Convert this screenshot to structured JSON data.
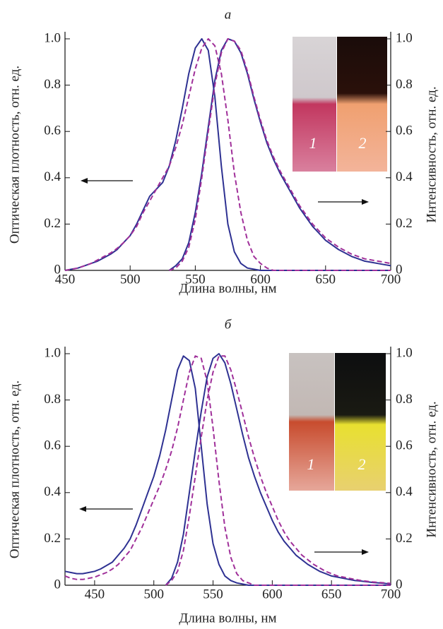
{
  "chart_data": [
    {
      "type": "line",
      "title": "а",
      "xlabel": "Длина волны, нм",
      "ylabel": "Оптическая плотность, отн. ед.",
      "y2label": "Интенсивность, отн. ед.",
      "inset_labels": [
        "1",
        "2"
      ],
      "xlim": [
        450,
        700
      ],
      "xticks": [
        450,
        500,
        550,
        600,
        650,
        700
      ],
      "ylim": [
        0,
        1
      ],
      "yticks": [
        0,
        0.2,
        0.4,
        0.6,
        0.8,
        {
          "value": 1,
          "label": "1.0"
        }
      ],
      "y2lim": [
        0,
        1
      ],
      "y2ticks": [
        0,
        0.2,
        0.4,
        0.6,
        0.8,
        {
          "value": 1,
          "label": "1.0"
        }
      ],
      "x": [
        450,
        455,
        460,
        465,
        470,
        475,
        480,
        485,
        490,
        495,
        500,
        505,
        510,
        515,
        520,
        525,
        530,
        535,
        540,
        545,
        550,
        555,
        560,
        565,
        570,
        575,
        580,
        585,
        590,
        595,
        600,
        605,
        610,
        615,
        620,
        625,
        630,
        635,
        640,
        645,
        650,
        655,
        660,
        665,
        670,
        675,
        680,
        685,
        690,
        695,
        700
      ],
      "series": [
        {
          "color": "#2e3192",
          "dash": "solid",
          "values": [
            0,
            0.005,
            0.01,
            0.02,
            0.03,
            0.04,
            0.055,
            0.07,
            0.09,
            0.12,
            0.15,
            0.2,
            0.26,
            0.32,
            0.35,
            0.38,
            0.45,
            0.56,
            0.7,
            0.85,
            0.96,
            1.0,
            0.95,
            0.75,
            0.45,
            0.2,
            0.08,
            0.03,
            0.01,
            0.005,
            0,
            0,
            0,
            0,
            0,
            0,
            0,
            0,
            0,
            0,
            0,
            0,
            0,
            0,
            0,
            0,
            0,
            0,
            0,
            0,
            0
          ]
        },
        {
          "color": "#a0309a",
          "dash": "dashed",
          "values": [
            0,
            0.005,
            0.01,
            0.02,
            0.03,
            0.045,
            0.06,
            0.075,
            0.095,
            0.12,
            0.15,
            0.19,
            0.25,
            0.3,
            0.35,
            0.4,
            0.45,
            0.53,
            0.63,
            0.75,
            0.87,
            0.96,
            1.0,
            0.97,
            0.85,
            0.65,
            0.42,
            0.25,
            0.13,
            0.06,
            0.03,
            0.01,
            0,
            0,
            0,
            0,
            0,
            0,
            0,
            0,
            0,
            0,
            0,
            0,
            0,
            0,
            0,
            0,
            0,
            0,
            0
          ]
        },
        {
          "color": "#2e3192",
          "dash": "solid",
          "axis": "y2",
          "values": [
            null,
            null,
            null,
            null,
            null,
            null,
            null,
            null,
            null,
            null,
            null,
            null,
            null,
            null,
            null,
            null,
            0,
            0.02,
            0.05,
            0.12,
            0.25,
            0.42,
            0.62,
            0.82,
            0.95,
            1.0,
            0.99,
            0.94,
            0.85,
            0.74,
            0.64,
            0.55,
            0.48,
            0.42,
            0.37,
            0.32,
            0.27,
            0.23,
            0.19,
            0.16,
            0.13,
            0.11,
            0.09,
            0.075,
            0.06,
            0.05,
            0.04,
            0.035,
            0.03,
            0.025,
            0.02
          ]
        },
        {
          "color": "#a0309a",
          "dash": "dashed",
          "axis": "y2",
          "values": [
            null,
            null,
            null,
            null,
            null,
            null,
            null,
            null,
            null,
            null,
            null,
            null,
            null,
            null,
            null,
            null,
            0,
            0.01,
            0.04,
            0.1,
            0.22,
            0.4,
            0.6,
            0.8,
            0.94,
            1.0,
            0.99,
            0.95,
            0.86,
            0.75,
            0.65,
            0.56,
            0.49,
            0.43,
            0.38,
            0.33,
            0.28,
            0.24,
            0.2,
            0.17,
            0.14,
            0.12,
            0.1,
            0.085,
            0.07,
            0.06,
            0.05,
            0.045,
            0.04,
            0.035,
            0.03
          ]
        }
      ]
    },
    {
      "type": "line",
      "title": "б",
      "xlabel": "Длина волны, нм",
      "ylabel": "Оптическая плотность, отн. ед.",
      "y2label": "Интенсивность, отн. ед.",
      "inset_labels": [
        "1",
        "2"
      ],
      "xlim": [
        425,
        700
      ],
      "xticks": [
        450,
        500,
        550,
        600,
        650,
        700
      ],
      "ylim": [
        0,
        1
      ],
      "yticks": [
        0,
        0.2,
        0.4,
        0.6,
        0.8,
        {
          "value": 1,
          "label": "1.0"
        }
      ],
      "y2lim": [
        0,
        1
      ],
      "y2ticks": [
        0,
        0.2,
        0.4,
        0.6,
        0.8,
        {
          "value": 1,
          "label": "1.0"
        }
      ],
      "x": [
        425,
        430,
        435,
        440,
        445,
        450,
        455,
        460,
        465,
        470,
        475,
        480,
        485,
        490,
        495,
        500,
        505,
        510,
        515,
        520,
        525,
        530,
        535,
        540,
        545,
        550,
        555,
        560,
        565,
        570,
        575,
        580,
        585,
        590,
        595,
        600,
        605,
        610,
        615,
        620,
        625,
        630,
        635,
        640,
        645,
        650,
        655,
        660,
        665,
        670,
        675,
        680,
        685,
        690,
        695,
        700
      ],
      "series": [
        {
          "color": "#2e3192",
          "dash": "solid",
          "values": [
            0.06,
            0.055,
            0.05,
            0.05,
            0.055,
            0.06,
            0.07,
            0.085,
            0.1,
            0.13,
            0.16,
            0.2,
            0.26,
            0.33,
            0.4,
            0.47,
            0.56,
            0.67,
            0.8,
            0.93,
            0.99,
            0.97,
            0.85,
            0.6,
            0.35,
            0.18,
            0.09,
            0.04,
            0.02,
            0.01,
            0.005,
            0,
            0,
            0,
            0,
            0,
            0,
            0,
            0,
            0,
            0,
            0,
            0,
            0,
            0,
            0,
            0,
            0,
            0,
            0,
            0,
            0,
            0,
            0,
            0,
            0
          ]
        },
        {
          "color": "#a0309a",
          "dash": "dashed",
          "values": [
            0.04,
            0.03,
            0.025,
            0.025,
            0.03,
            0.035,
            0.045,
            0.055,
            0.07,
            0.09,
            0.12,
            0.15,
            0.2,
            0.25,
            0.31,
            0.37,
            0.43,
            0.5,
            0.58,
            0.68,
            0.8,
            0.92,
            0.99,
            0.98,
            0.88,
            0.68,
            0.45,
            0.25,
            0.12,
            0.05,
            0.02,
            0.01,
            0,
            0,
            0,
            0,
            0,
            0,
            0,
            0,
            0,
            0,
            0,
            0,
            0,
            0,
            0,
            0,
            0,
            0,
            0,
            0,
            0,
            0,
            0,
            0
          ]
        },
        {
          "color": "#2e3192",
          "dash": "solid",
          "axis": "y2",
          "values": [
            null,
            null,
            null,
            null,
            null,
            null,
            null,
            null,
            null,
            null,
            null,
            null,
            null,
            null,
            null,
            null,
            null,
            0,
            0.03,
            0.1,
            0.22,
            0.4,
            0.58,
            0.75,
            0.9,
            0.98,
            1.0,
            0.96,
            0.87,
            0.76,
            0.65,
            0.55,
            0.47,
            0.4,
            0.34,
            0.28,
            0.23,
            0.19,
            0.16,
            0.13,
            0.11,
            0.09,
            0.075,
            0.06,
            0.05,
            0.04,
            0.035,
            0.03,
            0.025,
            0.02,
            0.018,
            0.015,
            0.012,
            0.01,
            0.008,
            0.005
          ]
        },
        {
          "color": "#a0309a",
          "dash": "dashed",
          "axis": "y2",
          "values": [
            null,
            null,
            null,
            null,
            null,
            null,
            null,
            null,
            null,
            null,
            null,
            null,
            null,
            null,
            null,
            null,
            null,
            0,
            0.02,
            0.06,
            0.15,
            0.3,
            0.47,
            0.64,
            0.8,
            0.92,
            0.99,
            0.99,
            0.93,
            0.84,
            0.74,
            0.64,
            0.55,
            0.47,
            0.4,
            0.34,
            0.28,
            0.23,
            0.19,
            0.16,
            0.13,
            0.11,
            0.09,
            0.075,
            0.06,
            0.05,
            0.04,
            0.035,
            0.03,
            0.025,
            0.02,
            0.017,
            0.014,
            0.012,
            0.01,
            0.008
          ]
        }
      ]
    }
  ]
}
